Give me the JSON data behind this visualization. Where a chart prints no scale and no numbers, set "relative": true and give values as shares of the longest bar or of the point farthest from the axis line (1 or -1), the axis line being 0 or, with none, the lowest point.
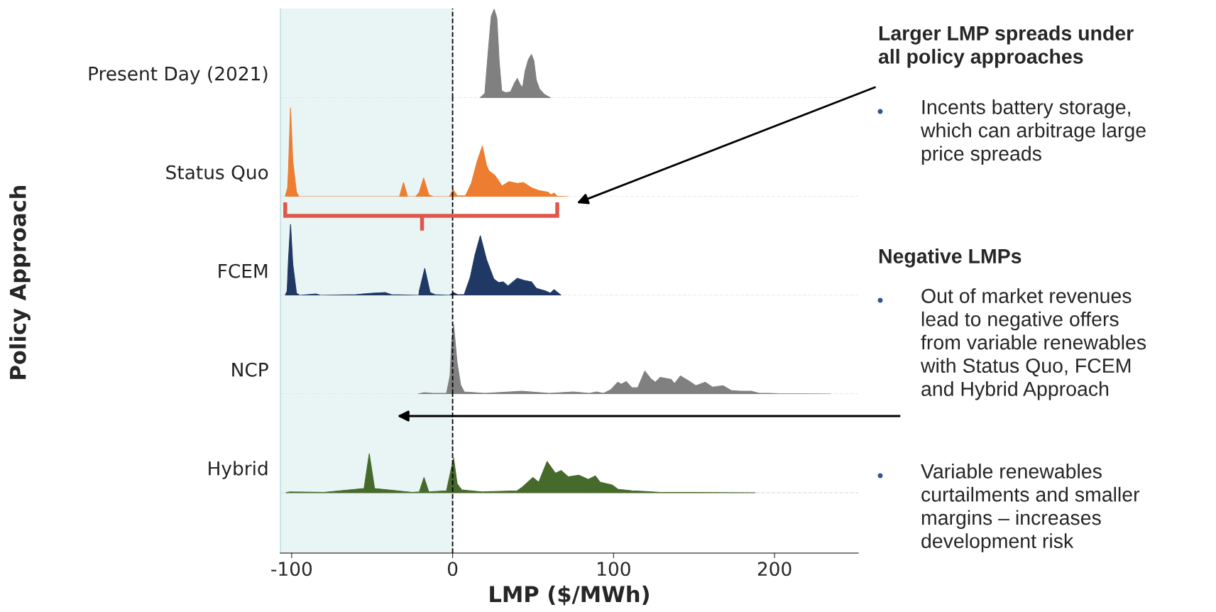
{
  "chart_data": [
    {
      "type": "area",
      "relative": true,
      "xlim": [
        -107,
        252
      ],
      "tick_labels": false,
      "bands": [
        {
          "axis": "x",
          "from": -107,
          "to": 0,
          "color": "#e9f4f5"
        }
      ],
      "ref_lines": [
        {
          "axis": "x",
          "value": 0,
          "color": "#000000",
          "line_style": "dashed"
        },
        {
          "axis": "y",
          "value": 0,
          "color": "#e4e4e4",
          "line_style": "dashed"
        }
      ],
      "annotations": [
        "Larger LMP spreads under\nall policy approaches",
        "Incents battery storage,\nwhich can arbitrage large\nprice spreads",
        "Negative LMPs",
        "Out of market revenues\nlead to negative offers\nfrom variable renewables\nwith Status Quo, FCEM\nand Hybrid Approach",
        "Variable renewables\ncurtailments and smaller\nmargins – increases\ndevelopment risk",
        "Policy Approach"
      ],
      "series": [
        {
          "name": "Present Day (2021)",
          "color": "#808080",
          "x": [
            17,
            20,
            22,
            24,
            25.8,
            27.5,
            29,
            30.5,
            33,
            36,
            38.5,
            40.2,
            42,
            43.5,
            45,
            47,
            49,
            50.5,
            52,
            54,
            57,
            61
          ],
          "values": [
            0,
            0.05,
            0.5,
            0.92,
            1.0,
            0.9,
            0.4,
            0.08,
            0.06,
            0.07,
            0.17,
            0.22,
            0.15,
            0.12,
            0.3,
            0.43,
            0.49,
            0.42,
            0.2,
            0.1,
            0.04,
            0
          ]
        }
      ]
    },
    {
      "type": "area",
      "relative": true,
      "xlim": [
        -107,
        252
      ],
      "tick_labels": false,
      "bands": [
        {
          "axis": "x",
          "from": -107,
          "to": 0,
          "color": "#e9f4f5"
        }
      ],
      "ref_lines": [
        {
          "axis": "x",
          "value": 0,
          "color": "#000000",
          "line_style": "dashed"
        },
        {
          "axis": "y",
          "value": 0,
          "color": "#e4e4e4",
          "line_style": "dashed"
        }
      ],
      "series": [
        {
          "name": "Status Quo",
          "color": "#ed7d31",
          "x": [
            -104,
            -102.5,
            -102,
            -100.7,
            -99.3,
            -97,
            -95.5,
            -33,
            -30.5,
            -28,
            -23,
            -20.7,
            -18,
            -14.8,
            -12,
            -2,
            0.3,
            2.8,
            8,
            11.6,
            15.3,
            18.5,
            21.1,
            22.6,
            26.3,
            30.7,
            35.1,
            40.2,
            43.9,
            49,
            53.5,
            59.3,
            61,
            63,
            65,
            71.8
          ],
          "values": [
            0,
            0.1,
            0.3,
            1.0,
            0.4,
            0.05,
            0,
            0,
            0.16,
            0,
            0,
            0.05,
            0.21,
            0.02,
            0,
            0,
            0.08,
            0.01,
            0.01,
            0.15,
            0.4,
            0.57,
            0.35,
            0.29,
            0.24,
            0.12,
            0.17,
            0.15,
            0.16,
            0.1,
            0.07,
            0.05,
            0.02,
            0.04,
            0.005,
            0
          ]
        }
      ]
    },
    {
      "type": "area",
      "relative": true,
      "xlim": [
        -107,
        252
      ],
      "tick_labels": false,
      "bands": [
        {
          "axis": "x",
          "from": -107,
          "to": 0,
          "color": "#e9f4f5"
        }
      ],
      "ref_lines": [
        {
          "axis": "x",
          "value": 0,
          "color": "#000000",
          "line_style": "dashed"
        },
        {
          "axis": "y",
          "value": 0,
          "color": "#e4e4e4",
          "line_style": "dashed"
        }
      ],
      "series": [
        {
          "name": "FCEM",
          "color": "#203864",
          "x": [
            -104,
            -102.8,
            -102,
            -100.7,
            -99.3,
            -97,
            -95,
            -85,
            -82,
            -60,
            -50,
            -42,
            -38,
            -21,
            -20.7,
            -17.3,
            -14,
            -11,
            -2,
            0.6,
            3,
            7.2,
            10.9,
            13.8,
            17.2,
            21.1,
            25.6,
            28.5,
            31.4,
            34.4,
            40.2,
            44.6,
            49,
            52,
            57.9,
            60.8,
            63,
            67.4
          ],
          "values": [
            0,
            0.06,
            0.5,
            1,
            0.44,
            0.03,
            0,
            0.02,
            0,
            0.01,
            0.03,
            0.04,
            0.01,
            0,
            0.06,
            0.38,
            0.04,
            0.01,
            0,
            0.04,
            0.01,
            0.01,
            0.25,
            0.56,
            0.84,
            0.5,
            0.23,
            0.18,
            0.19,
            0.13,
            0.24,
            0.21,
            0.19,
            0.1,
            0.06,
            0.03,
            0.08,
            0
          ]
        }
      ]
    },
    {
      "type": "area",
      "relative": true,
      "xlim": [
        -107,
        252
      ],
      "tick_labels": false,
      "bands": [
        {
          "axis": "x",
          "from": -107,
          "to": 0,
          "color": "#e9f4f5"
        }
      ],
      "ref_lines": [
        {
          "axis": "x",
          "value": 0,
          "color": "#000000",
          "line_style": "dashed"
        },
        {
          "axis": "y",
          "value": 0,
          "color": "#e4e4e4",
          "line_style": "dashed"
        }
      ],
      "series": [
        {
          "name": "NCP",
          "color": "#808080",
          "x": [
            -21.4,
            -17.8,
            -12,
            -3.8,
            -1.6,
            -0.5,
            0.6,
            2.8,
            5,
            7.2,
            20,
            43,
            60,
            75,
            85,
            89.4,
            93.8,
            98.2,
            102.6,
            104.8,
            107.8,
            111.4,
            115,
            119.4,
            123.1,
            126,
            129,
            135.7,
            137.9,
            141.5,
            146.7,
            151.1,
            157,
            161.4,
            168,
            173.1,
            179,
            185.6,
            190.7,
            196.6,
            202.5,
            234.8
          ],
          "values": [
            0,
            0.02,
            0.01,
            0.01,
            0.26,
            0.77,
            1,
            0.45,
            0.13,
            0.03,
            0.01,
            0.04,
            0.01,
            0.03,
            0.01,
            0.03,
            0.01,
            0.06,
            0.17,
            0.14,
            0.18,
            0.09,
            0.09,
            0.33,
            0.22,
            0.17,
            0.24,
            0.21,
            0.15,
            0.26,
            0.19,
            0.12,
            0.17,
            0.1,
            0.12,
            0.05,
            0.04,
            0.04,
            0.01,
            0.01,
            0.004,
            0
          ]
        }
      ]
    },
    {
      "type": "area",
      "relative": true,
      "xlim": [
        -107,
        252
      ],
      "xticks": [
        -100,
        0,
        100,
        200
      ],
      "xlabel": "LMP ($/MWh)",
      "tick_labels": "x",
      "bands": [
        {
          "axis": "x",
          "from": -107,
          "to": 0,
          "color": "#e9f4f5"
        }
      ],
      "ref_lines": [
        {
          "axis": "x",
          "value": 0,
          "color": "#000000",
          "line_style": "dashed"
        },
        {
          "axis": "y",
          "value": 0,
          "color": "#e4e4e4",
          "line_style": "dashed"
        }
      ],
      "series": [
        {
          "name": "Hybrid",
          "color": "#466a2b",
          "x": [
            -103.6,
            -101,
            -80,
            -55,
            -51.8,
            -48.5,
            -25,
            -20.7,
            -17.8,
            -14.8,
            -3.8,
            0.6,
            2.8,
            5.7,
            18.2,
            40.2,
            43.2,
            49.8,
            53.5,
            58.7,
            63.9,
            67.4,
            71.8,
            78.4,
            84.3,
            88.7,
            91.6,
            93.8,
            99,
            102.6,
            111.4,
            120.2,
            129,
            151,
            188
          ],
          "values": [
            0,
            0.02,
            0.01,
            0.11,
            1,
            0.11,
            0.01,
            0.02,
            0.39,
            0.02,
            0.05,
            0.89,
            0.23,
            0.07,
            0.02,
            0.05,
            0.14,
            0.39,
            0.27,
            0.8,
            0.5,
            0.57,
            0.41,
            0.45,
            0.34,
            0.43,
            0.27,
            0.25,
            0.2,
            0.09,
            0.05,
            0.03,
            0.01,
            0.01,
            0
          ]
        }
      ]
    }
  ]
}
